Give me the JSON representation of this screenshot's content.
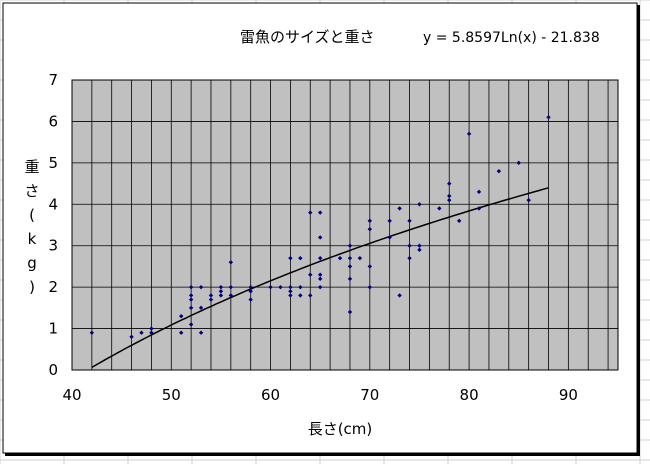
{
  "chart_data": {
    "type": "scatter",
    "title": "雷魚のサイズと重さ",
    "equation": "y = 5.8597Ln(x) - 21.838",
    "xlabel": "長さ(cm)",
    "ylabel_chars": [
      "重",
      "さ",
      "(",
      "k",
      "g",
      ")"
    ],
    "xlim": [
      40,
      95
    ],
    "ylim": [
      0,
      7
    ],
    "x_ticks": [
      40,
      50,
      60,
      70,
      80,
      90
    ],
    "y_ticks": [
      0,
      1,
      2,
      3,
      4,
      5,
      6,
      7
    ],
    "grid": true,
    "legend": "none",
    "trendline": {
      "type": "logarithmic",
      "a": 5.8597,
      "b": -21.838,
      "x_from": 42,
      "x_to": 88
    },
    "colors": {
      "plot_bg": "#c0c0c0",
      "point": "#000080",
      "line": "#000000",
      "grid": "#000000"
    },
    "series": [
      {
        "points": [
          [
            42,
            0.9
          ],
          [
            46,
            0.8
          ],
          [
            47,
            0.9
          ],
          [
            48,
            0.9
          ],
          [
            48,
            1.0
          ],
          [
            51,
            0.9
          ],
          [
            51,
            1.3
          ],
          [
            52,
            1.1
          ],
          [
            52,
            1.5
          ],
          [
            52,
            1.7
          ],
          [
            52,
            1.8
          ],
          [
            52,
            2.0
          ],
          [
            53,
            0.9
          ],
          [
            53,
            1.5
          ],
          [
            53,
            2.0
          ],
          [
            54,
            1.7
          ],
          [
            54,
            1.8
          ],
          [
            55,
            1.8
          ],
          [
            55,
            1.9
          ],
          [
            55,
            2.0
          ],
          [
            56,
            1.8
          ],
          [
            56,
            2.0
          ],
          [
            56,
            2.6
          ],
          [
            58,
            1.7
          ],
          [
            58,
            1.9
          ],
          [
            58,
            2.0
          ],
          [
            60,
            2.0
          ],
          [
            61,
            2.0
          ],
          [
            62,
            1.8
          ],
          [
            62,
            1.9
          ],
          [
            62,
            2.0
          ],
          [
            62,
            2.7
          ],
          [
            63,
            1.8
          ],
          [
            63,
            2.0
          ],
          [
            63,
            2.7
          ],
          [
            64,
            1.8
          ],
          [
            64,
            2.3
          ],
          [
            64,
            3.8
          ],
          [
            65,
            2.0
          ],
          [
            65,
            2.2
          ],
          [
            65,
            2.3
          ],
          [
            65,
            2.7
          ],
          [
            65,
            3.2
          ],
          [
            65,
            3.8
          ],
          [
            67,
            2.7
          ],
          [
            68,
            1.4
          ],
          [
            68,
            2.2
          ],
          [
            68,
            2.5
          ],
          [
            68,
            2.7
          ],
          [
            68,
            3.0
          ],
          [
            69,
            2.7
          ],
          [
            70,
            2.0
          ],
          [
            70,
            2.5
          ],
          [
            70,
            3.4
          ],
          [
            70,
            3.6
          ],
          [
            72,
            3.2
          ],
          [
            72,
            3.6
          ],
          [
            73,
            1.8
          ],
          [
            73,
            3.9
          ],
          [
            74,
            2.7
          ],
          [
            74,
            3.0
          ],
          [
            74,
            3.6
          ],
          [
            75,
            2.9
          ],
          [
            75,
            3.0
          ],
          [
            75,
            4.0
          ],
          [
            77,
            3.9
          ],
          [
            78,
            4.1
          ],
          [
            78,
            4.2
          ],
          [
            78,
            4.5
          ],
          [
            79,
            3.6
          ],
          [
            80,
            5.7
          ],
          [
            81,
            3.9
          ],
          [
            81,
            4.3
          ],
          [
            83,
            4.8
          ],
          [
            85,
            5.0
          ],
          [
            86,
            4.1
          ],
          [
            88,
            6.1
          ]
        ]
      }
    ]
  }
}
